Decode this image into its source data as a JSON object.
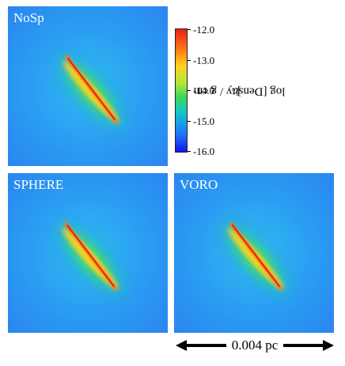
{
  "panels": [
    {
      "id": "nosp",
      "label": "NoSp"
    },
    {
      "id": "sphere",
      "label": "SPHERE"
    },
    {
      "id": "voro",
      "label": "VORO"
    }
  ],
  "colorbar": {
    "title_prefix": "log [Density / g cm",
    "title_exponent": "-3",
    "title_suffix": "]",
    "ticks": [
      "-12.0",
      "-13.0",
      "-14.0",
      "-15.0",
      "-16.0"
    ],
    "tick_values": [
      -12.0,
      -13.0,
      -14.0,
      -15.0,
      -16.0
    ],
    "range": [
      -16.0,
      -12.0
    ],
    "colors": [
      "#1414e6",
      "#1f74ff",
      "#12c6c6",
      "#3fd858",
      "#b4e63c",
      "#ffd220",
      "#ff6a10",
      "#e8201a"
    ]
  },
  "scale_bar": {
    "label": "0.004 pc"
  }
}
